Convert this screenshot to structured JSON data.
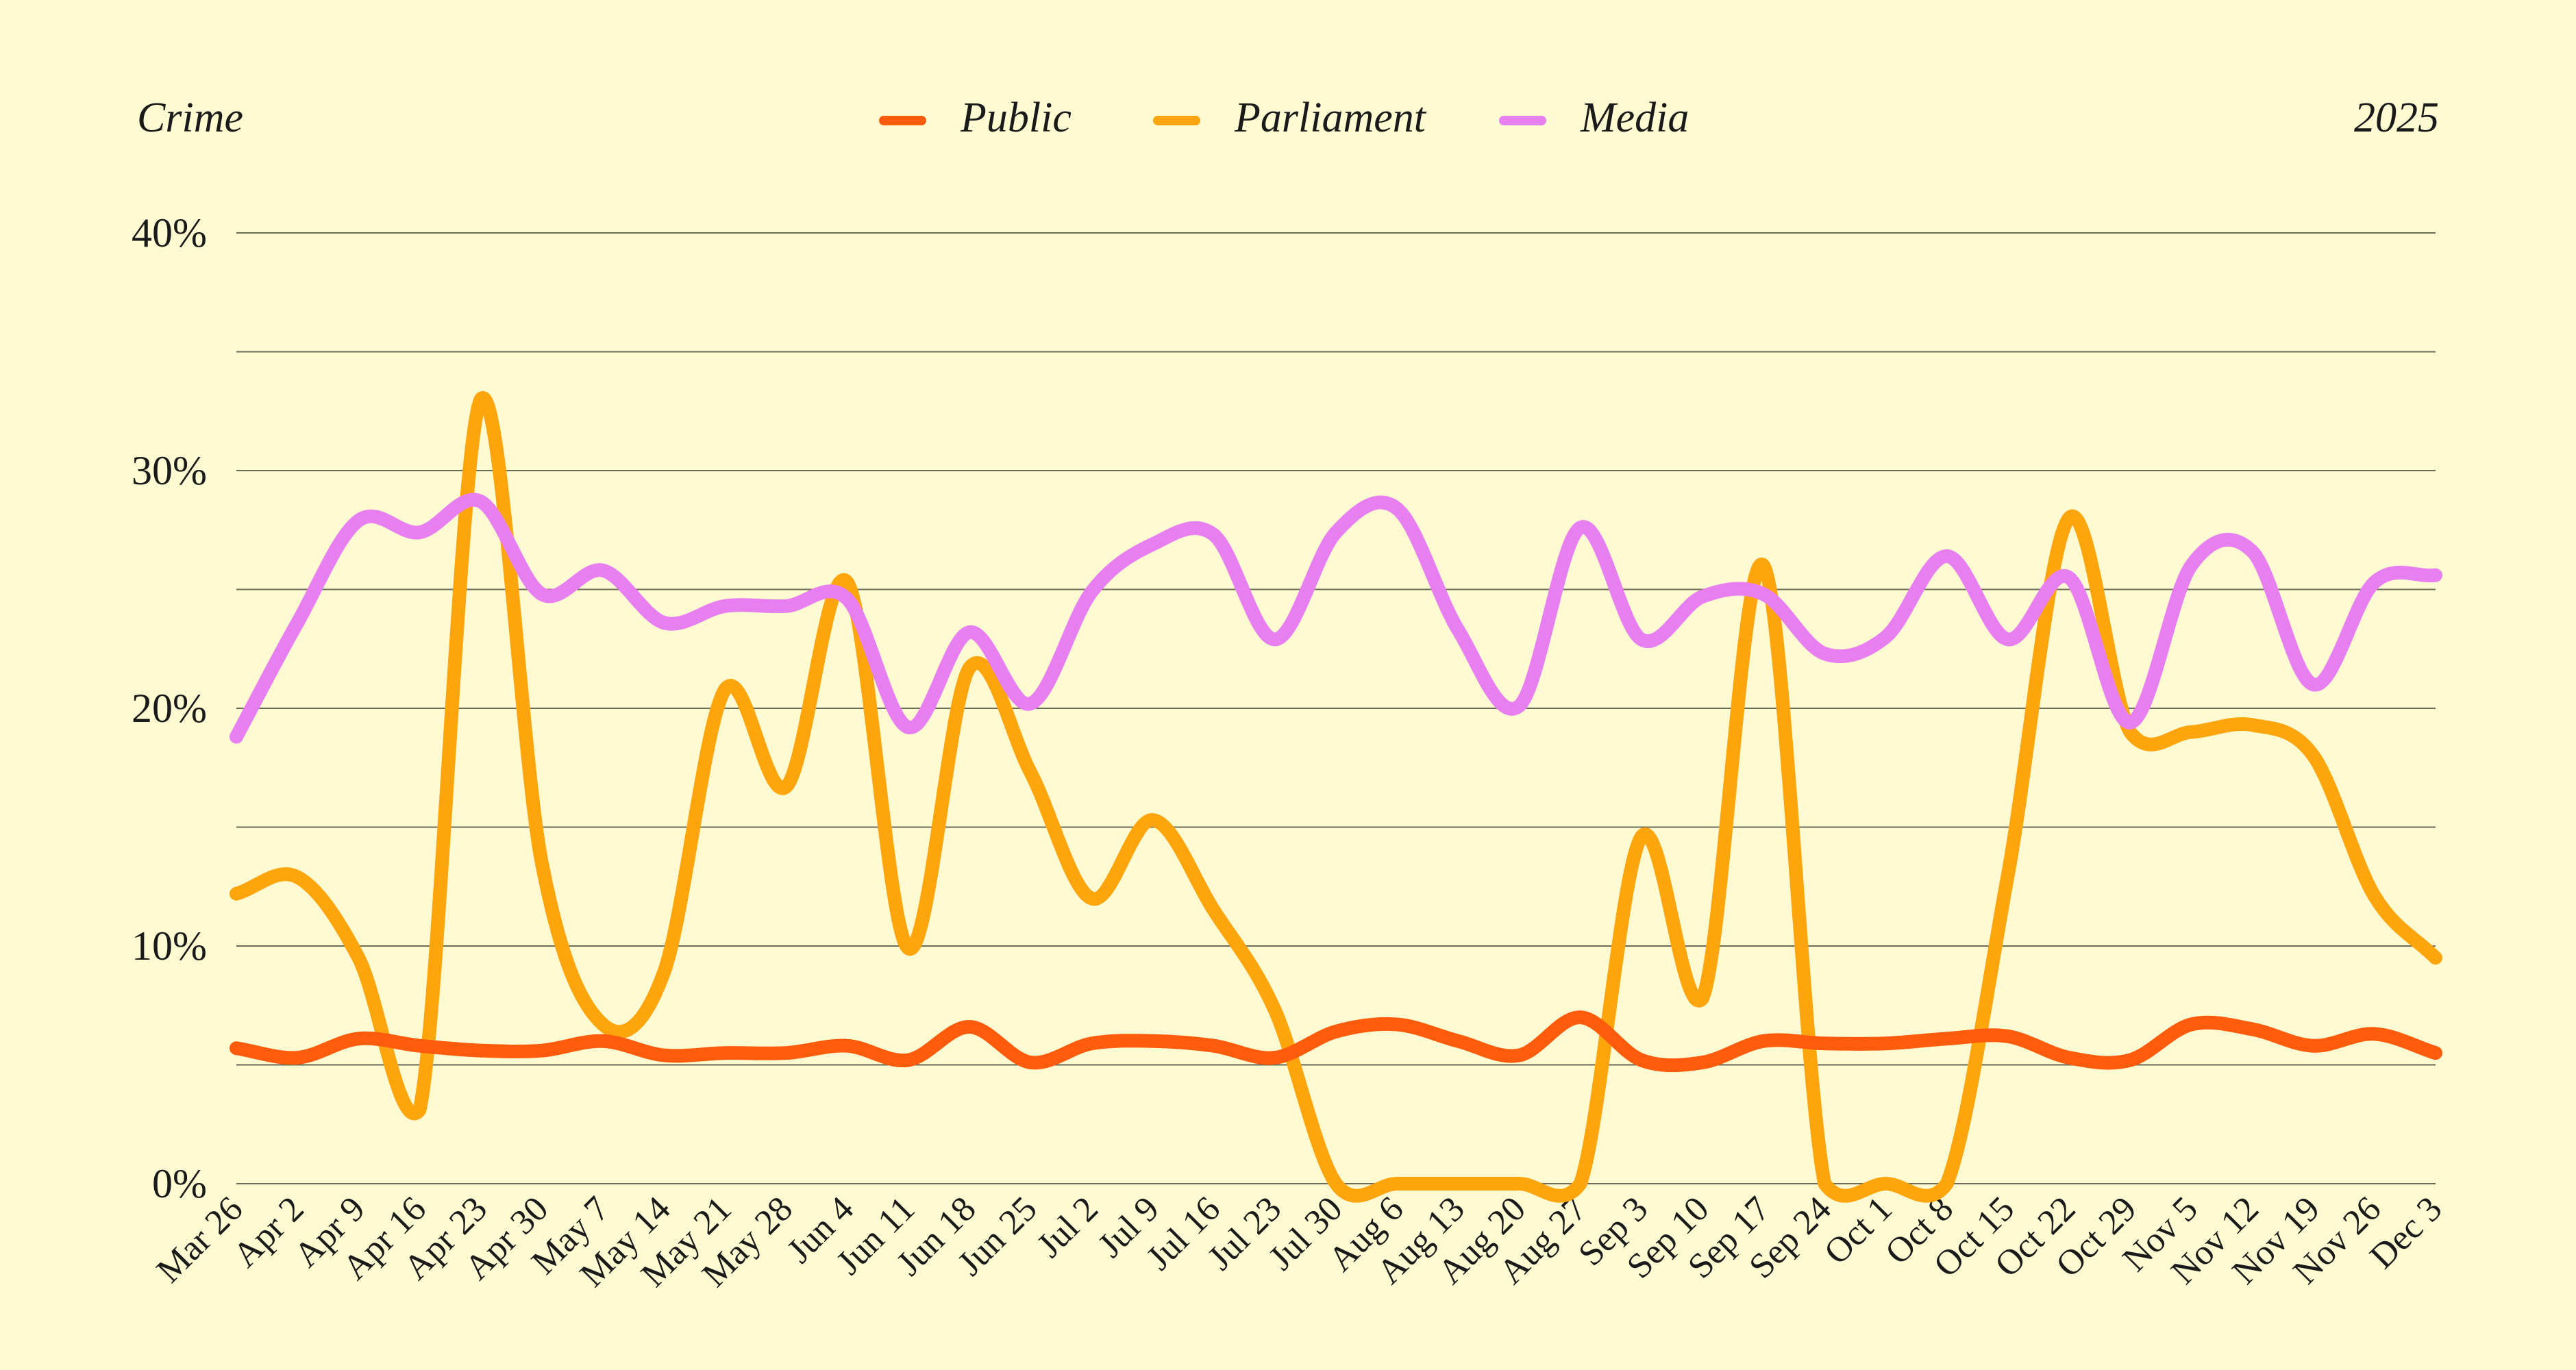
{
  "header": {
    "left": "Crime",
    "right": "2025"
  },
  "chart_data": {
    "type": "line",
    "title": "Crime",
    "subtitle": "2025",
    "xlabel": "",
    "ylabel": "",
    "ylim": [
      0,
      40
    ],
    "yticks": [
      "0%",
      "10%",
      "20%",
      "30%",
      "40%"
    ],
    "grid": true,
    "legend": "top-center",
    "x": [
      "Mar 26",
      "Apr 2",
      "Apr 9",
      "Apr 16",
      "Apr 23",
      "Apr 30",
      "May 7",
      "May 14",
      "May 21",
      "May 28",
      "Jun 4",
      "Jun 11",
      "Jun 18",
      "Jun 25",
      "Jul 2",
      "Jul 9",
      "Jul 16",
      "Jul 23",
      "Jul 30",
      "Aug 6",
      "Aug 13",
      "Aug 20",
      "Aug 27",
      "Sep 3",
      "Sep 10",
      "Sep 17",
      "Sep 24",
      "Oct 1",
      "Oct 8",
      "Oct 15",
      "Oct 22",
      "Oct 29",
      "Nov 5",
      "Nov 12",
      "Nov 19",
      "Nov 26",
      "Dec 3"
    ],
    "series": [
      {
        "name": "Public",
        "color": "#fe5c0c",
        "values": [
          5.7,
          5.3,
          6.1,
          5.8,
          5.6,
          5.6,
          6.0,
          5.4,
          5.5,
          5.5,
          5.8,
          5.2,
          6.6,
          5.1,
          5.9,
          6.0,
          5.8,
          5.3,
          6.4,
          6.7,
          6.0,
          5.4,
          7.0,
          5.2,
          5.1,
          6.0,
          5.9,
          5.9,
          6.1,
          6.2,
          5.3,
          5.2,
          6.7,
          6.5,
          5.8,
          6.3,
          5.5
        ]
      },
      {
        "name": "Parliament",
        "color": "#fea50e",
        "values": [
          12.2,
          12.9,
          9.5,
          3.1,
          33.0,
          13.5,
          6.7,
          8.9,
          20.8,
          16.7,
          25.3,
          9.9,
          21.7,
          17.3,
          12.0,
          15.3,
          11.5,
          7.3,
          0.0,
          0.0,
          0.0,
          0.0,
          0.0,
          14.6,
          7.8,
          26.0,
          0.0,
          0.0,
          0.0,
          13.0,
          28.0,
          19.0,
          19.0,
          19.3,
          18.0,
          12.1,
          9.5
        ]
      },
      {
        "name": "Media",
        "color": "#e87ff0",
        "values": [
          18.8,
          23.6,
          27.9,
          27.4,
          28.7,
          24.8,
          25.8,
          23.6,
          24.3,
          24.3,
          24.6,
          19.2,
          23.2,
          20.2,
          24.9,
          26.9,
          27.3,
          22.9,
          27.4,
          28.4,
          23.3,
          20.1,
          27.6,
          22.9,
          24.7,
          24.8,
          22.3,
          23.0,
          26.4,
          22.9,
          25.5,
          19.4,
          26.0,
          26.6,
          21.0,
          25.3,
          25.6
        ]
      }
    ]
  }
}
